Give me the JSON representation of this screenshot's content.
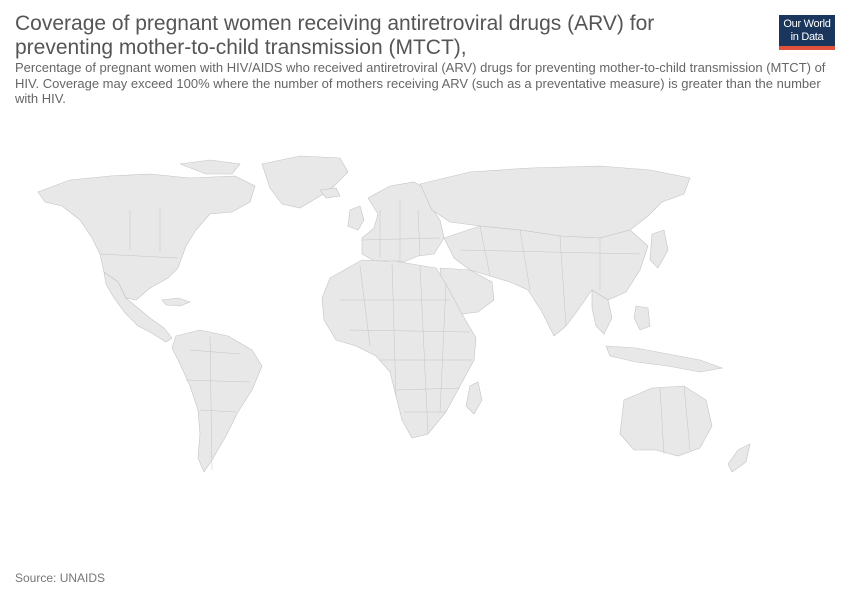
{
  "header": {
    "title": "Coverage of pregnant women receiving antiretroviral drugs (ARV) for preventing mother-to-child transmission (MTCT),",
    "subtitle": "Percentage of pregnant women with HIV/AIDS who received antiretroviral (ARV) drugs for preventing mother-to-child transmission (MTCT) of HIV. Coverage may exceed 100% where the number of mothers receiving ARV (such as a preventative measure) is greater than the number with HIV."
  },
  "logo": {
    "line1": "Our World",
    "line2": "in Data",
    "bg_color": "#1a365d",
    "accent_color": "#e2523c"
  },
  "map": {
    "land_color": "#e8e8e8",
    "border_color": "#c4c4c4",
    "no_data": true
  },
  "footer": {
    "source": "Source: UNAIDS"
  }
}
